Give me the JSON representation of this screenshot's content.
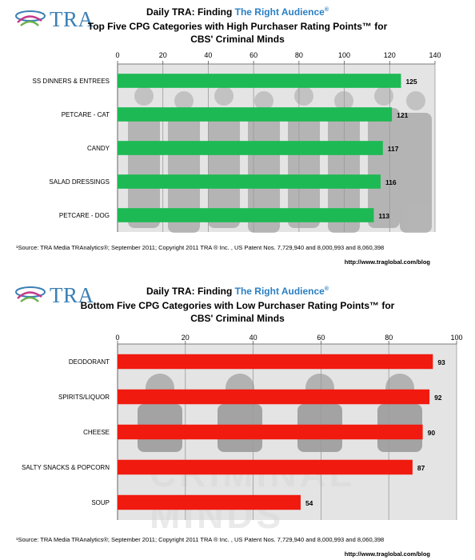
{
  "header": {
    "daily_prefix": "Daily TRA: Finding ",
    "brand_phrase": "The Right Audience",
    "reg_mark": "®",
    "logo_text": "TRA"
  },
  "colors": {
    "top_bars": "#1db954",
    "bottom_bars": "#f01a0f",
    "brand_blue": "#2a7fc4"
  },
  "panels": [
    {
      "subtitle_line1": "Top Five CPG Categories with High Purchaser Rating Points™ for",
      "subtitle_line2": "CBS' Criminal Minds",
      "footnote": "¹Source:  TRA Media TRAnalytics®; September 2011; Copyright 2011 TRA ® Inc. , US Patent Nos. 7,729,940 and 8,000,993 and  8,060,398",
      "url": "http://www.traglobal.com/blog"
    },
    {
      "subtitle_line1": "Bottom Five CPG Categories with Low Purchaser Rating Points™ for",
      "subtitle_line2": "CBS' Criminal Minds",
      "footnote": "¹Source:  TRA Media TRAnalytics®; September 2011; Copyright 2011 TRA ® Inc. , US Patent Nos. 7,729,940 and 8,000,993 and  8,060,398",
      "url": "http://www.traglobal.com/blog"
    }
  ],
  "chart_data": [
    {
      "type": "bar",
      "orientation": "horizontal",
      "title": "Top Five CPG Categories with High Purchaser Rating Points™ for CBS' Criminal Minds",
      "categories": [
        "SS DINNERS  & ENTREES",
        "PETCARE - CAT",
        "CANDY",
        "SALAD DRESSINGS",
        "PETCARE - DOG"
      ],
      "values": [
        125,
        121,
        117,
        116,
        113
      ],
      "xlim": [
        0,
        140
      ],
      "ticks": [
        0,
        20,
        40,
        60,
        80,
        100,
        120,
        140
      ],
      "bar_color": "#1db954",
      "grid": true,
      "axis_position": "top"
    },
    {
      "type": "bar",
      "orientation": "horizontal",
      "title": "Bottom Five CPG Categories with Low Purchaser Rating Points™ for CBS' Criminal Minds",
      "categories": [
        "DEODORANT",
        "SPIRITS/LIQUOR",
        "CHEESE",
        "SALTY SNACKS & POPCORN",
        "SOUP"
      ],
      "values": [
        93,
        92,
        90,
        87,
        54
      ],
      "xlim": [
        0,
        100
      ],
      "ticks": [
        0,
        20,
        40,
        60,
        80,
        100
      ],
      "bar_color": "#f01a0f",
      "grid": true,
      "axis_position": "top",
      "background_text": [
        "CRIMINAL",
        "MINDS"
      ]
    }
  ]
}
